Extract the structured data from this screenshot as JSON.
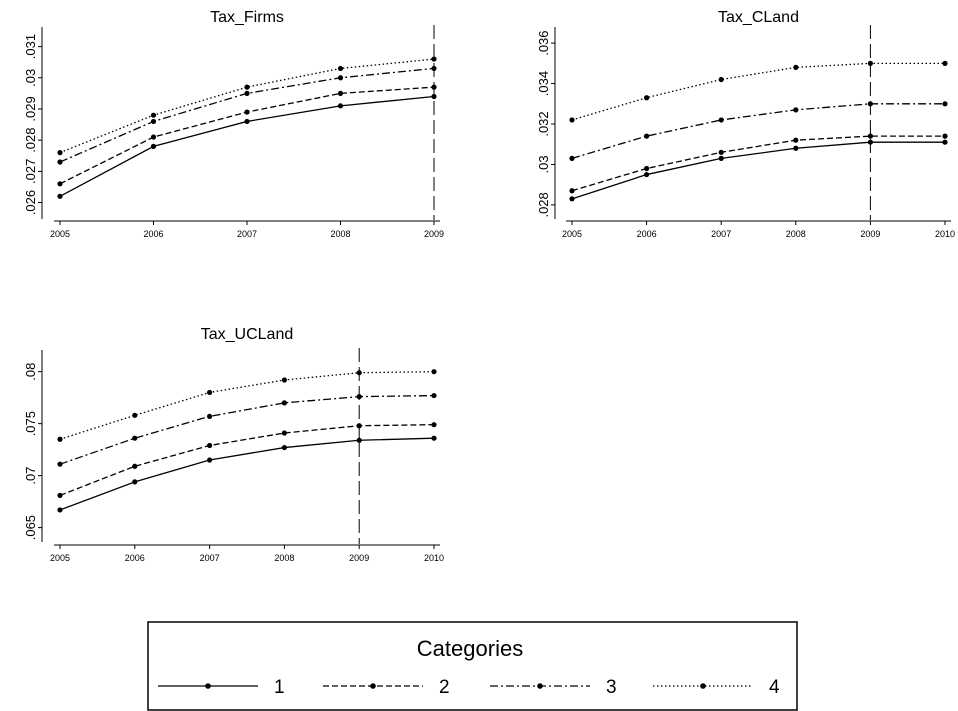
{
  "chart_data": [
    {
      "type": "line",
      "title": "Tax_Firms",
      "xlabel": "",
      "ylabel": "",
      "x": [
        "2005",
        "2006",
        "2007",
        "2008",
        "2009"
      ],
      "yticks": [
        ".026",
        ".027",
        ".028",
        ".029",
        ".03",
        ".031"
      ],
      "ylim": [
        0.0256,
        0.0315
      ],
      "vline": "2009",
      "series": [
        {
          "name": "1",
          "dash": "solid",
          "values": [
            0.0262,
            0.0278,
            0.0286,
            0.0291,
            0.0294
          ]
        },
        {
          "name": "2",
          "dash": "dashed",
          "values": [
            0.0266,
            0.0281,
            0.0289,
            0.0295,
            0.0297
          ]
        },
        {
          "name": "3",
          "dash": "dashdot",
          "values": [
            0.0273,
            0.0286,
            0.0295,
            0.03,
            0.0303
          ]
        },
        {
          "name": "4",
          "dash": "dotted",
          "values": [
            0.0276,
            0.0288,
            0.0297,
            0.0303,
            0.0306
          ]
        }
      ]
    },
    {
      "type": "line",
      "title": "Tax_CLand",
      "xlabel": "",
      "ylabel": "",
      "x": [
        "2005",
        "2006",
        "2007",
        "2008",
        "2009",
        "2010"
      ],
      "yticks": [
        ".028",
        ".03",
        ".032",
        ".034",
        ".036"
      ],
      "ylim": [
        0.0275,
        0.0366
      ],
      "vline": "2009",
      "series": [
        {
          "name": "1",
          "dash": "solid",
          "values": [
            0.0283,
            0.0295,
            0.0303,
            0.0308,
            0.0311,
            0.0311
          ]
        },
        {
          "name": "2",
          "dash": "dashed",
          "values": [
            0.0287,
            0.0298,
            0.0306,
            0.0312,
            0.0314,
            0.0314
          ]
        },
        {
          "name": "3",
          "dash": "dashdot",
          "values": [
            0.0303,
            0.0314,
            0.0322,
            0.0327,
            0.033,
            0.033
          ]
        },
        {
          "name": "4",
          "dash": "dotted",
          "values": [
            0.0322,
            0.0333,
            0.0342,
            0.0348,
            0.035,
            0.035
          ]
        }
      ]
    },
    {
      "type": "line",
      "title": "Tax_UCLand",
      "xlabel": "",
      "ylabel": "",
      "x": [
        "2005",
        "2006",
        "2007",
        "2008",
        "2009",
        "2010"
      ],
      "yticks": [
        ".065",
        ".07",
        ".075",
        ".08"
      ],
      "ylim": [
        0.064,
        0.0817
      ],
      "vline": "2009",
      "series": [
        {
          "name": "1",
          "dash": "solid",
          "values": [
            0.0667,
            0.0694,
            0.0715,
            0.0727,
            0.0734,
            0.0736
          ]
        },
        {
          "name": "2",
          "dash": "dashed",
          "values": [
            0.0681,
            0.0709,
            0.0729,
            0.0741,
            0.0748,
            0.0749
          ]
        },
        {
          "name": "3",
          "dash": "dashdot",
          "values": [
            0.0711,
            0.0736,
            0.0757,
            0.077,
            0.0776,
            0.0777
          ]
        },
        {
          "name": "4",
          "dash": "dotted",
          "values": [
            0.0735,
            0.0758,
            0.078,
            0.0792,
            0.0799,
            0.08
          ]
        }
      ]
    }
  ],
  "legend": {
    "title": "Categories",
    "items": [
      "1",
      "2",
      "3",
      "4"
    ]
  },
  "colors": {
    "line": "#000000",
    "background": "#ffffff"
  }
}
